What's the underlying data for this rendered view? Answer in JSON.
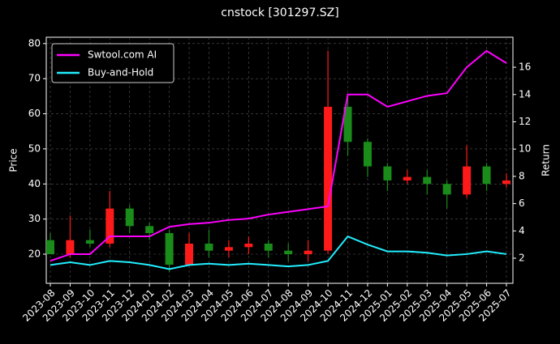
{
  "chart_data": {
    "type": "candlestick",
    "title": "cnstock [301297.SZ]",
    "y_label": "Price",
    "y2_label": "Return",
    "categories": [
      "2023-08",
      "2023-09",
      "2023-10",
      "2023-11",
      "2023-12",
      "2024-01",
      "2024-02",
      "2024-03",
      "2024-04",
      "2024-05",
      "2024-06",
      "2024-07",
      "2024-08",
      "2024-09",
      "2024-10",
      "2024-11",
      "2024-12",
      "2025-01",
      "2025-02",
      "2025-03",
      "2025-04",
      "2025-05",
      "2025-06",
      "2025-07"
    ],
    "candles": {
      "open": [
        24,
        20,
        24,
        23,
        33,
        28,
        26,
        17,
        23,
        21,
        22,
        23,
        21,
        20,
        21,
        62,
        52,
        45,
        41,
        42,
        40,
        37,
        45,
        40
      ],
      "high": [
        26,
        31,
        27,
        38,
        34,
        29,
        27,
        26,
        27,
        24,
        25,
        24,
        23,
        24,
        78,
        65,
        53,
        46,
        44,
        44,
        41,
        51,
        46,
        43
      ],
      "low": [
        20,
        19,
        22,
        22,
        26,
        24,
        15,
        17,
        19,
        19,
        20,
        19,
        18,
        18,
        20,
        48,
        42,
        38,
        40,
        37,
        33,
        36,
        38,
        39
      ],
      "close": [
        20,
        24,
        23,
        33,
        28,
        26,
        17,
        23,
        21,
        22,
        23,
        21,
        20,
        21,
        62,
        52,
        45,
        41,
        42,
        40,
        37,
        45,
        40,
        41
      ],
      "up_color": "#ff1a1a",
      "down_color": "#1a8c1a"
    },
    "series": [
      {
        "name": "Swtool.com AI",
        "color": "#ff00ff",
        "axis": "y2",
        "values": [
          1.8,
          2.3,
          2.3,
          3.6,
          3.6,
          3.6,
          4.3,
          4.5,
          4.6,
          4.8,
          4.9,
          5.2,
          5.4,
          5.6,
          5.8,
          14,
          14,
          13.1,
          13.5,
          13.9,
          14.1,
          16.0,
          17.2,
          16.3
        ]
      },
      {
        "name": "Buy-and-Hold",
        "color": "#22eeff",
        "axis": "y2",
        "values": [
          1.5,
          1.7,
          1.5,
          1.8,
          1.7,
          1.5,
          1.2,
          1.5,
          1.6,
          1.5,
          1.6,
          1.5,
          1.4,
          1.5,
          1.8,
          3.6,
          3.0,
          2.5,
          2.5,
          2.4,
          2.2,
          2.3,
          2.5,
          2.3
        ]
      }
    ],
    "ylim": [
      11.7,
      81.8
    ],
    "yticks": [
      20,
      30,
      40,
      50,
      60,
      70,
      80
    ],
    "y2lim": [
      0.16,
      18.2
    ],
    "y2ticks": [
      2,
      4,
      6,
      8,
      10,
      12,
      14,
      16
    ],
    "grid": true,
    "legend": "upper left"
  }
}
